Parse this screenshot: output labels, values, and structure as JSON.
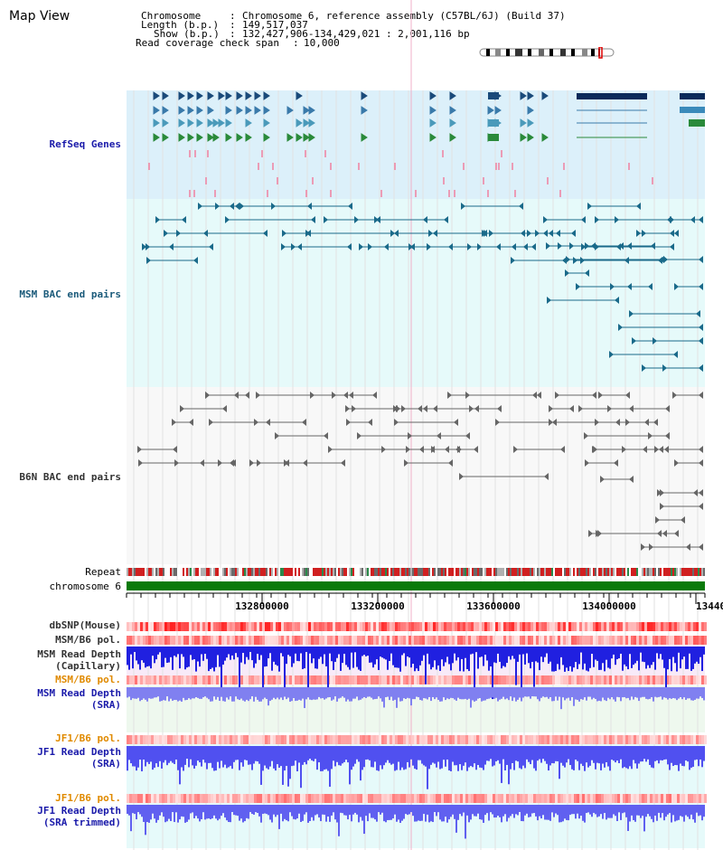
{
  "title": "Map View",
  "info": {
    "chromosome_key": "Chromosome",
    "chromosome_val": "Chromosome 6, reference assembly (C57BL/6J) (Build 37)",
    "length_key": "Length (b.p.)",
    "length_val": "149,517,037",
    "show_key": "Show (b.p.)",
    "show_val": "132,427,906-134,429,021 : 2,001,116 bp",
    "coverage_key": "Read coverage check span",
    "coverage_val": "10,000"
  },
  "tracks": {
    "refseq": "RefSeq Genes",
    "msm_bac": "MSM BAC end pairs",
    "b6n_bac": "B6N BAC end pairs",
    "repeat": "Repeat",
    "chromosome": "chromosome 6",
    "dbsnp": "dbSNP(Mouse)",
    "msm_b6_pol_1": "MSM/B6 pol.",
    "msm_depth_cap_1": "MSM Read Depth",
    "msm_depth_cap_2": "(Capillary)",
    "msm_b6_pol_2": "MSM/B6 pol.",
    "msm_depth_sra_1": "MSM Read Depth",
    "msm_depth_sra_2": "(SRA)",
    "jf1_b6_pol_1": "JF1/B6 pol.",
    "jf1_depth_sra_1": "JF1 Read Depth",
    "jf1_depth_sra_2": "(SRA)",
    "jf1_b6_pol_2": "JF1/B6 pol.",
    "jf1_depth_trim_1": "JF1 Read Depth",
    "jf1_depth_trim_2": "(SRA trimmed)"
  },
  "axis": {
    "ticks": [
      "132800000",
      "133200000",
      "133600000",
      "134000000",
      "13440"
    ]
  },
  "colors": {
    "refseq_bg": "#dcf0fa",
    "msm_bg": "#e6fafa",
    "b6n_bg": "#f8f8f8",
    "chromosome": "#0a7a0a",
    "label_blue": "#1a1aaa",
    "label_teal": "#1a5a7a",
    "label_orange": "#e08a00"
  }
}
